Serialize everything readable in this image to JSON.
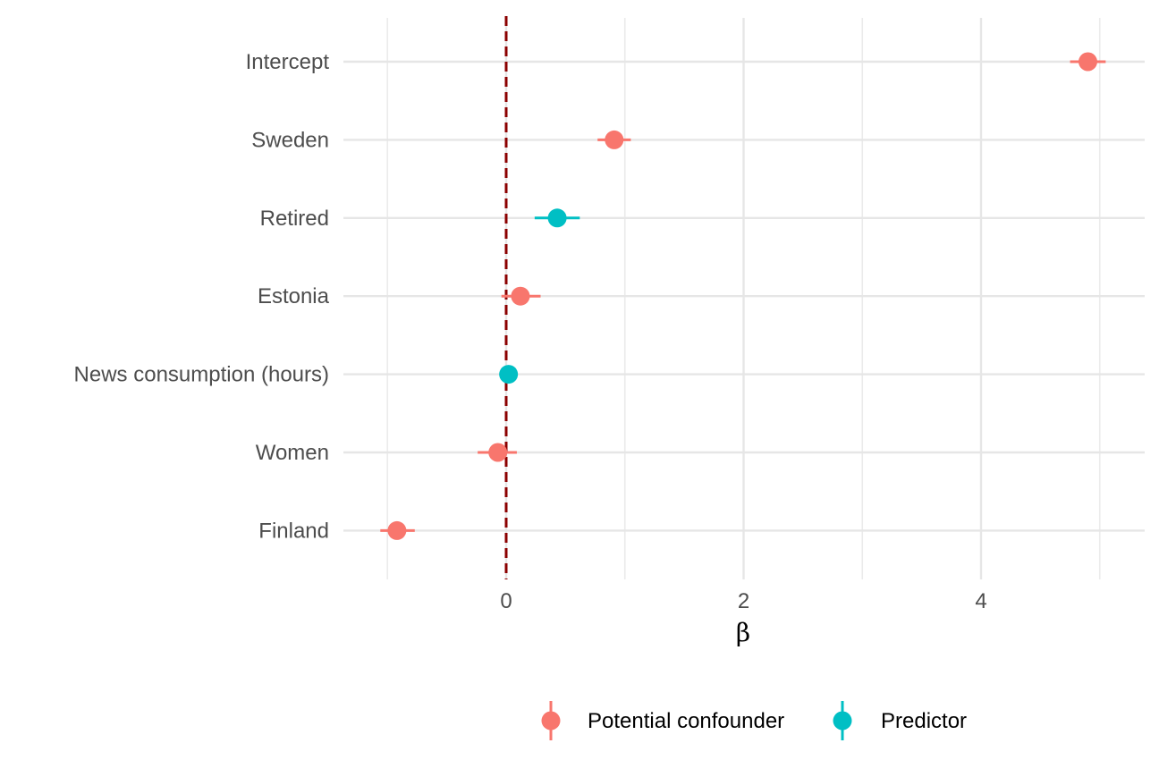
{
  "chart_data": {
    "type": "scatter",
    "subtype": "coefficient-plot",
    "title": "",
    "xlabel": "β",
    "ylabel": "",
    "xlim": [
      -1.25,
      5.4
    ],
    "x_ticks": [
      0,
      2,
      4
    ],
    "x_tick_labels": [
      "0",
      "2",
      "4"
    ],
    "x_minor_gridlines": [
      -1,
      1,
      3,
      5
    ],
    "reference_line": {
      "x": 0,
      "style": "dashed",
      "color": "#8b0000"
    },
    "grid": true,
    "legend_position": "bottom",
    "categories": [
      "Intercept",
      "Sweden",
      "Retired",
      "Estonia",
      "News consumption (hours)",
      "Women",
      "Finland"
    ],
    "series": [
      {
        "name": "Potential confounder",
        "color": "#f8766d",
        "points": [
          {
            "category": "Intercept",
            "estimate": 4.9,
            "low": 4.75,
            "high": 5.05
          },
          {
            "category": "Sweden",
            "estimate": 0.91,
            "low": 0.77,
            "high": 1.05
          },
          {
            "category": "Estonia",
            "estimate": 0.12,
            "low": -0.04,
            "high": 0.29
          },
          {
            "category": "Women",
            "estimate": -0.07,
            "low": -0.24,
            "high": 0.09
          },
          {
            "category": "Finland",
            "estimate": -0.92,
            "low": -1.06,
            "high": -0.77
          }
        ]
      },
      {
        "name": "Predictor",
        "color": "#00bfc4",
        "points": [
          {
            "category": "Retired",
            "estimate": 0.43,
            "low": 0.24,
            "high": 0.62
          },
          {
            "category": "News consumption (hours)",
            "estimate": 0.02,
            "low": 0.0,
            "high": 0.04
          }
        ]
      }
    ]
  }
}
